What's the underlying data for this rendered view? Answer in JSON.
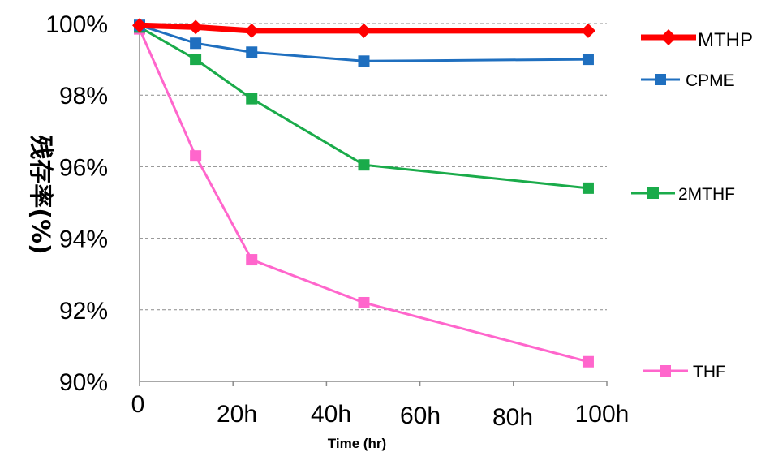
{
  "chart_data": {
    "type": "line",
    "xlabel": "Time (hr)",
    "ylabel": "残存率(%)",
    "xlim": [
      0,
      100
    ],
    "ylim": [
      90,
      100
    ],
    "xticks": [
      0,
      20,
      40,
      60,
      80,
      100
    ],
    "xtick_labels": [
      "0",
      "20h",
      "40h",
      "60h",
      "80h",
      "100h"
    ],
    "yticks": [
      90,
      92,
      94,
      96,
      98,
      100
    ],
    "ytick_labels": [
      "90%",
      "92%",
      "94%",
      "96%",
      "98%",
      "100%"
    ],
    "grid": "horizontal-dashed",
    "legend_placement": "right",
    "series": [
      {
        "name": "MTHP",
        "color": "#ff0000",
        "marker": "diamond",
        "x": [
          0,
          12,
          24,
          48,
          96
        ],
        "y": [
          99.95,
          99.9,
          99.8,
          99.8,
          99.8
        ]
      },
      {
        "name": "CPME",
        "color": "#1f6fbf",
        "marker": "square",
        "x": [
          0,
          12,
          24,
          48,
          96
        ],
        "y": [
          99.95,
          99.45,
          99.2,
          98.95,
          99.0
        ]
      },
      {
        "name": "2MTHF",
        "color": "#1aab4a",
        "marker": "square",
        "x": [
          0,
          12,
          24,
          48,
          96
        ],
        "y": [
          99.9,
          99.0,
          97.9,
          96.05,
          95.4
        ]
      },
      {
        "name": "THF",
        "color": "#ff66cc",
        "marker": "square",
        "x": [
          0,
          12,
          24,
          48,
          96
        ],
        "y": [
          99.85,
          96.3,
          93.4,
          92.2,
          90.55
        ]
      }
    ]
  }
}
